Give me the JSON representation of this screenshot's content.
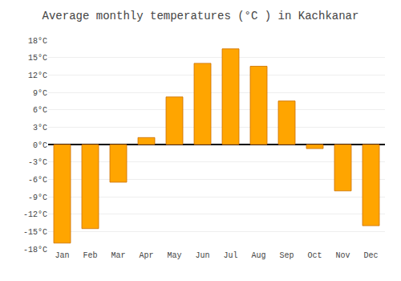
{
  "chart_data": {
    "type": "bar",
    "title": "Average monthly temperatures (°C ) in Kachkanar",
    "categories": [
      "Jan",
      "Feb",
      "Mar",
      "Apr",
      "May",
      "Jun",
      "Jul",
      "Aug",
      "Sep",
      "Oct",
      "Nov",
      "Dec"
    ],
    "values": [
      -17,
      -14.5,
      -6.5,
      1.2,
      8.2,
      14,
      16.5,
      13.5,
      7.5,
      -0.7,
      -8,
      -14
    ],
    "color": "#FFA500",
    "ylim": [
      -18,
      18
    ],
    "yticks": [
      {
        "value": -18,
        "label": "-18°C"
      },
      {
        "value": -15,
        "label": "-15°C"
      },
      {
        "value": -12,
        "label": "-12°C"
      },
      {
        "value": -9,
        "label": "-9°C"
      },
      {
        "value": -6,
        "label": "-6°C"
      },
      {
        "value": -3,
        "label": "-3°C"
      },
      {
        "value": 0,
        "label": "0°C"
      },
      {
        "value": 3,
        "label": "3°C"
      },
      {
        "value": 6,
        "label": "6°C"
      },
      {
        "value": 9,
        "label": "9°C"
      },
      {
        "value": 12,
        "label": "12°C"
      },
      {
        "value": 15,
        "label": "15°C"
      },
      {
        "value": 18,
        "label": "18°C"
      }
    ],
    "grid": true
  }
}
